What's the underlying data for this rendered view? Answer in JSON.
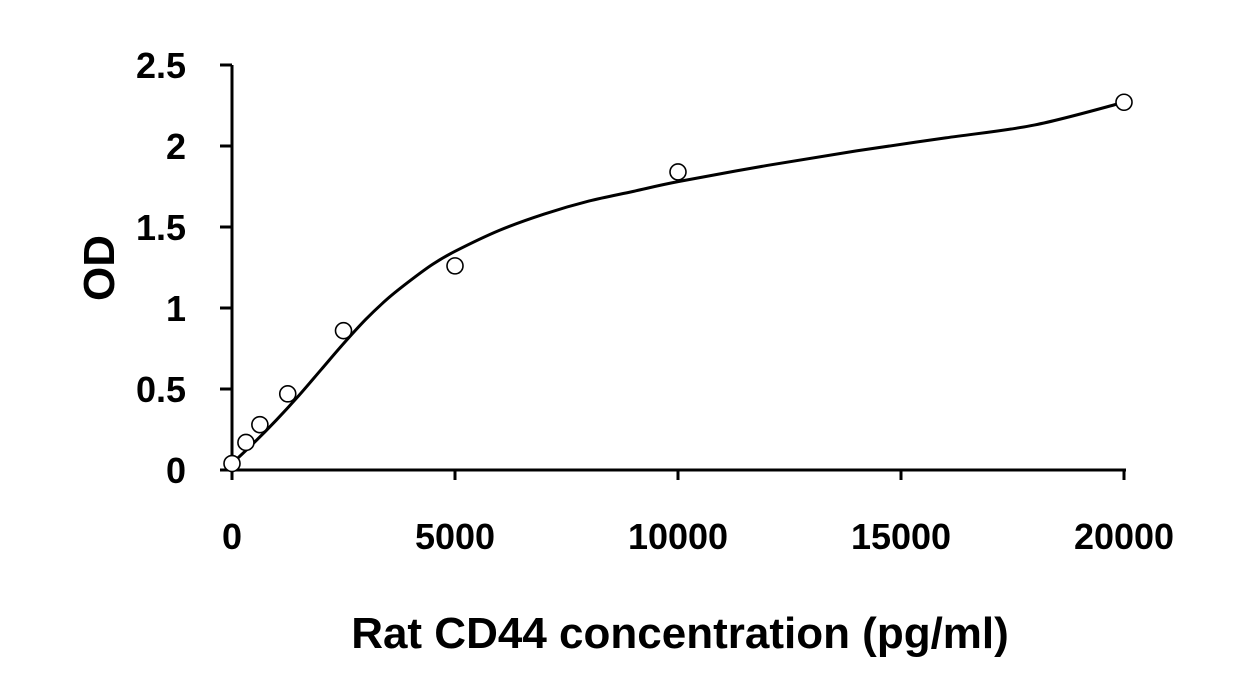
{
  "chart_data": {
    "type": "scatter",
    "xlabel": "Rat CD44 concentration (pg/ml)",
    "ylabel": "OD",
    "xlim": [
      0,
      20000
    ],
    "ylim": [
      0,
      2.5
    ],
    "x_ticks": [
      "0",
      "5000",
      "10000",
      "15000",
      "20000"
    ],
    "y_ticks": [
      "0",
      "0.5",
      "1",
      "1.5",
      "2",
      "2.5"
    ],
    "grid": false,
    "legend": "none",
    "series": [
      {
        "marker": "open-circle",
        "points": [
          {
            "x": 0,
            "y": 0.04
          },
          {
            "x": 312.5,
            "y": 0.17
          },
          {
            "x": 625,
            "y": 0.28
          },
          {
            "x": 1250,
            "y": 0.47
          },
          {
            "x": 2500,
            "y": 0.86
          },
          {
            "x": 5000,
            "y": 1.26
          },
          {
            "x": 10000,
            "y": 1.84
          },
          {
            "x": 20000,
            "y": 2.27
          }
        ]
      }
    ],
    "fit_curve": {
      "style": "smooth-line",
      "points": [
        {
          "x": 0,
          "y": 0.04
        },
        {
          "x": 500,
          "y": 0.17
        },
        {
          "x": 1000,
          "y": 0.31
        },
        {
          "x": 1500,
          "y": 0.46
        },
        {
          "x": 2000,
          "y": 0.62
        },
        {
          "x": 2500,
          "y": 0.78
        },
        {
          "x": 3000,
          "y": 0.93
        },
        {
          "x": 3500,
          "y": 1.06
        },
        {
          "x": 4000,
          "y": 1.17
        },
        {
          "x": 4500,
          "y": 1.27
        },
        {
          "x": 5000,
          "y": 1.35
        },
        {
          "x": 6000,
          "y": 1.48
        },
        {
          "x": 7000,
          "y": 1.58
        },
        {
          "x": 8000,
          "y": 1.66
        },
        {
          "x": 9000,
          "y": 1.72
        },
        {
          "x": 10000,
          "y": 1.78
        },
        {
          "x": 12000,
          "y": 1.88
        },
        {
          "x": 14000,
          "y": 1.97
        },
        {
          "x": 16000,
          "y": 2.05
        },
        {
          "x": 18000,
          "y": 2.13
        },
        {
          "x": 20000,
          "y": 2.27
        }
      ]
    }
  }
}
